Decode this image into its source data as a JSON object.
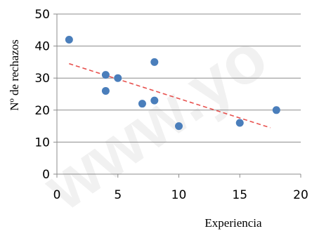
{
  "chart_data": {
    "type": "scatter",
    "title": "",
    "xlabel": "Experiencia",
    "ylabel": "Nº de rechazos",
    "xlim": [
      0,
      20
    ],
    "ylim": [
      0,
      50
    ],
    "xticks": [
      0,
      5,
      10,
      15,
      20
    ],
    "yticks": [
      0,
      10,
      20,
      30,
      40,
      50
    ],
    "grid": "horizontal",
    "legend": "none",
    "point_color": "#4a7ebb",
    "trendline_color": "#e8524f",
    "trendline_style": "dashed",
    "points": [
      {
        "x": 1,
        "y": 42
      },
      {
        "x": 4,
        "y": 31
      },
      {
        "x": 4,
        "y": 26
      },
      {
        "x": 5,
        "y": 30
      },
      {
        "x": 7,
        "y": 22
      },
      {
        "x": 8,
        "y": 35
      },
      {
        "x": 8,
        "y": 23
      },
      {
        "x": 10,
        "y": 15
      },
      {
        "x": 15,
        "y": 16
      },
      {
        "x": 18,
        "y": 20
      }
    ],
    "trendline": [
      {
        "x": 1,
        "y": 34.5
      },
      {
        "x": 17.5,
        "y": 14.5
      }
    ]
  }
}
